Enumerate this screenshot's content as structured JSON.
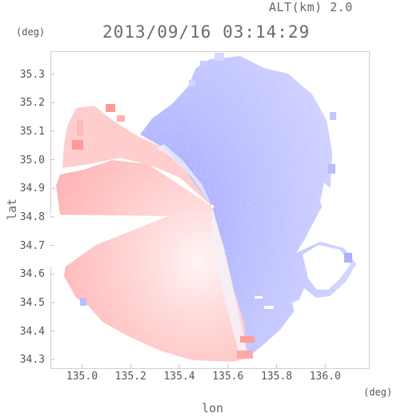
{
  "header": {
    "altitude_label": "ALT(km) 2.0",
    "datetime": "2013/09/16 03:14:29",
    "y_unit": "(deg)",
    "x_unit": "(deg)"
  },
  "axes": {
    "xlabel": "lon",
    "ylabel": "lat",
    "x_ticks": [
      "135.0",
      "135.2",
      "135.4",
      "135.6",
      "135.8",
      "136.0"
    ],
    "y_ticks": [
      "35.3",
      "35.2",
      "35.1",
      "35.0",
      "34.9",
      "34.8",
      "34.7",
      "34.6",
      "34.5",
      "34.4",
      "34.3"
    ],
    "x_range": [
      134.87,
      136.18
    ],
    "y_range": [
      34.27,
      35.38
    ],
    "radar_center": {
      "lon": 135.52,
      "lat": 34.82
    },
    "colors": {
      "approaching": "#8f93ff",
      "receding": "#ff8e8e",
      "frame": "#d8c8c8"
    }
  }
}
